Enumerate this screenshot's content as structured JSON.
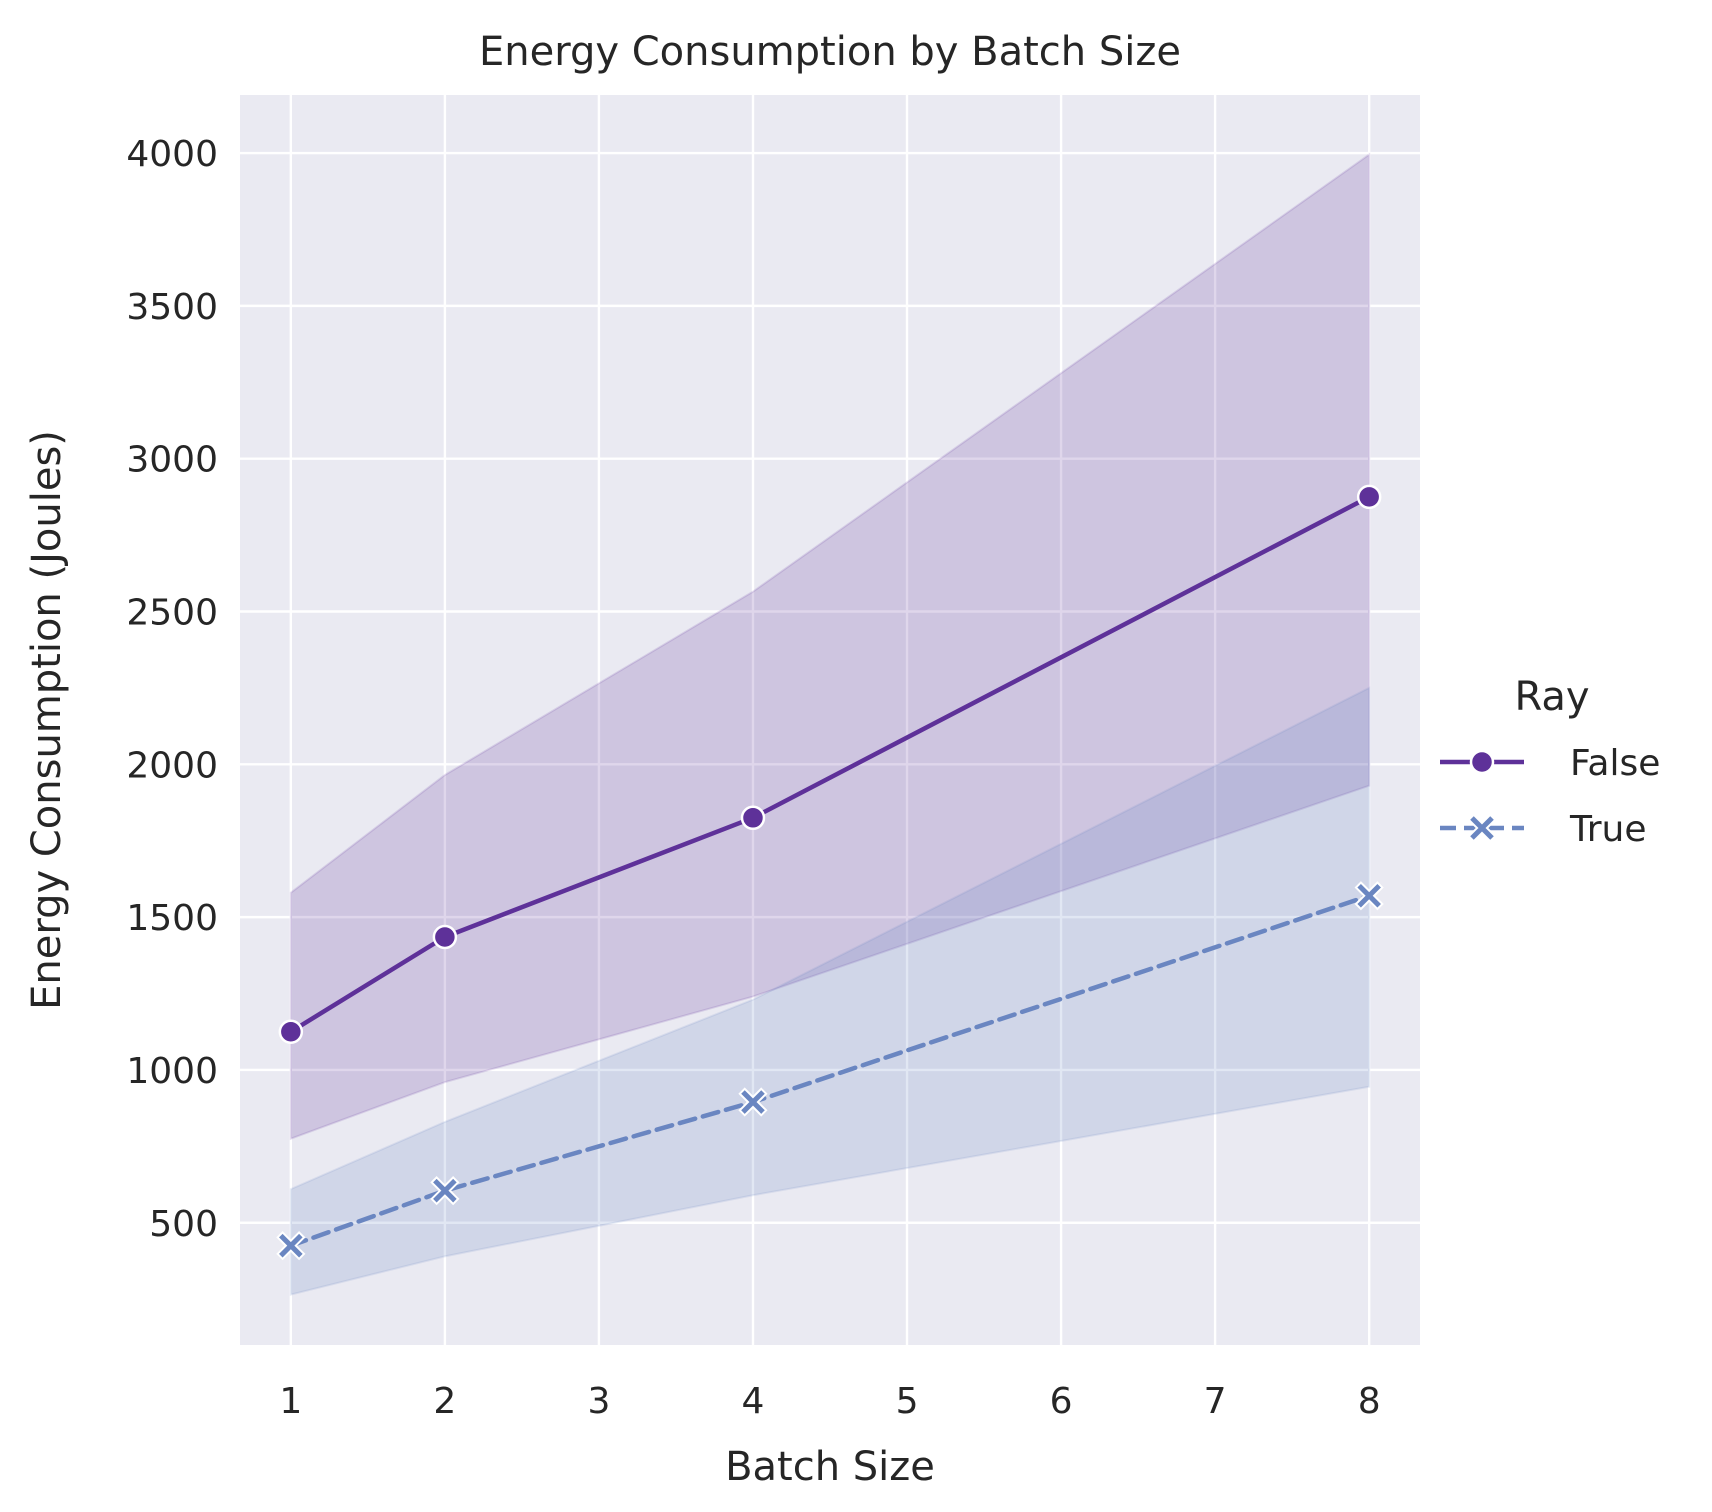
{
  "chart_data": {
    "type": "line",
    "title": "Energy Consumption by Batch Size",
    "xlabel": "Batch Size",
    "ylabel": "Energy Consumption (Joules)",
    "xlim": [
      0.67,
      8.33
    ],
    "ylim": [
      100,
      4190
    ],
    "xticks": [
      1,
      2,
      3,
      4,
      5,
      6,
      7,
      8
    ],
    "yticks": [
      500,
      1000,
      1500,
      2000,
      2500,
      3000,
      3500,
      4000
    ],
    "grid": true,
    "legend": {
      "title": "Ray",
      "position": "right"
    },
    "x": [
      1,
      2,
      4,
      8
    ],
    "series": [
      {
        "name": "False",
        "color": "#5e3199",
        "style": "solid",
        "marker": "circle",
        "values": [
          1125,
          1435,
          1825,
          2875
        ],
        "ci_lower": [
          775,
          960,
          1240,
          1930
        ],
        "ci_upper": [
          1580,
          1965,
          2565,
          3995
        ]
      },
      {
        "name": "True",
        "color": "#6a86c1",
        "style": "dashed",
        "marker": "x",
        "values": [
          425,
          605,
          895,
          1570
        ],
        "ci_lower": [
          265,
          390,
          590,
          945
        ],
        "ci_upper": [
          610,
          830,
          1230,
          2250
        ]
      }
    ]
  }
}
